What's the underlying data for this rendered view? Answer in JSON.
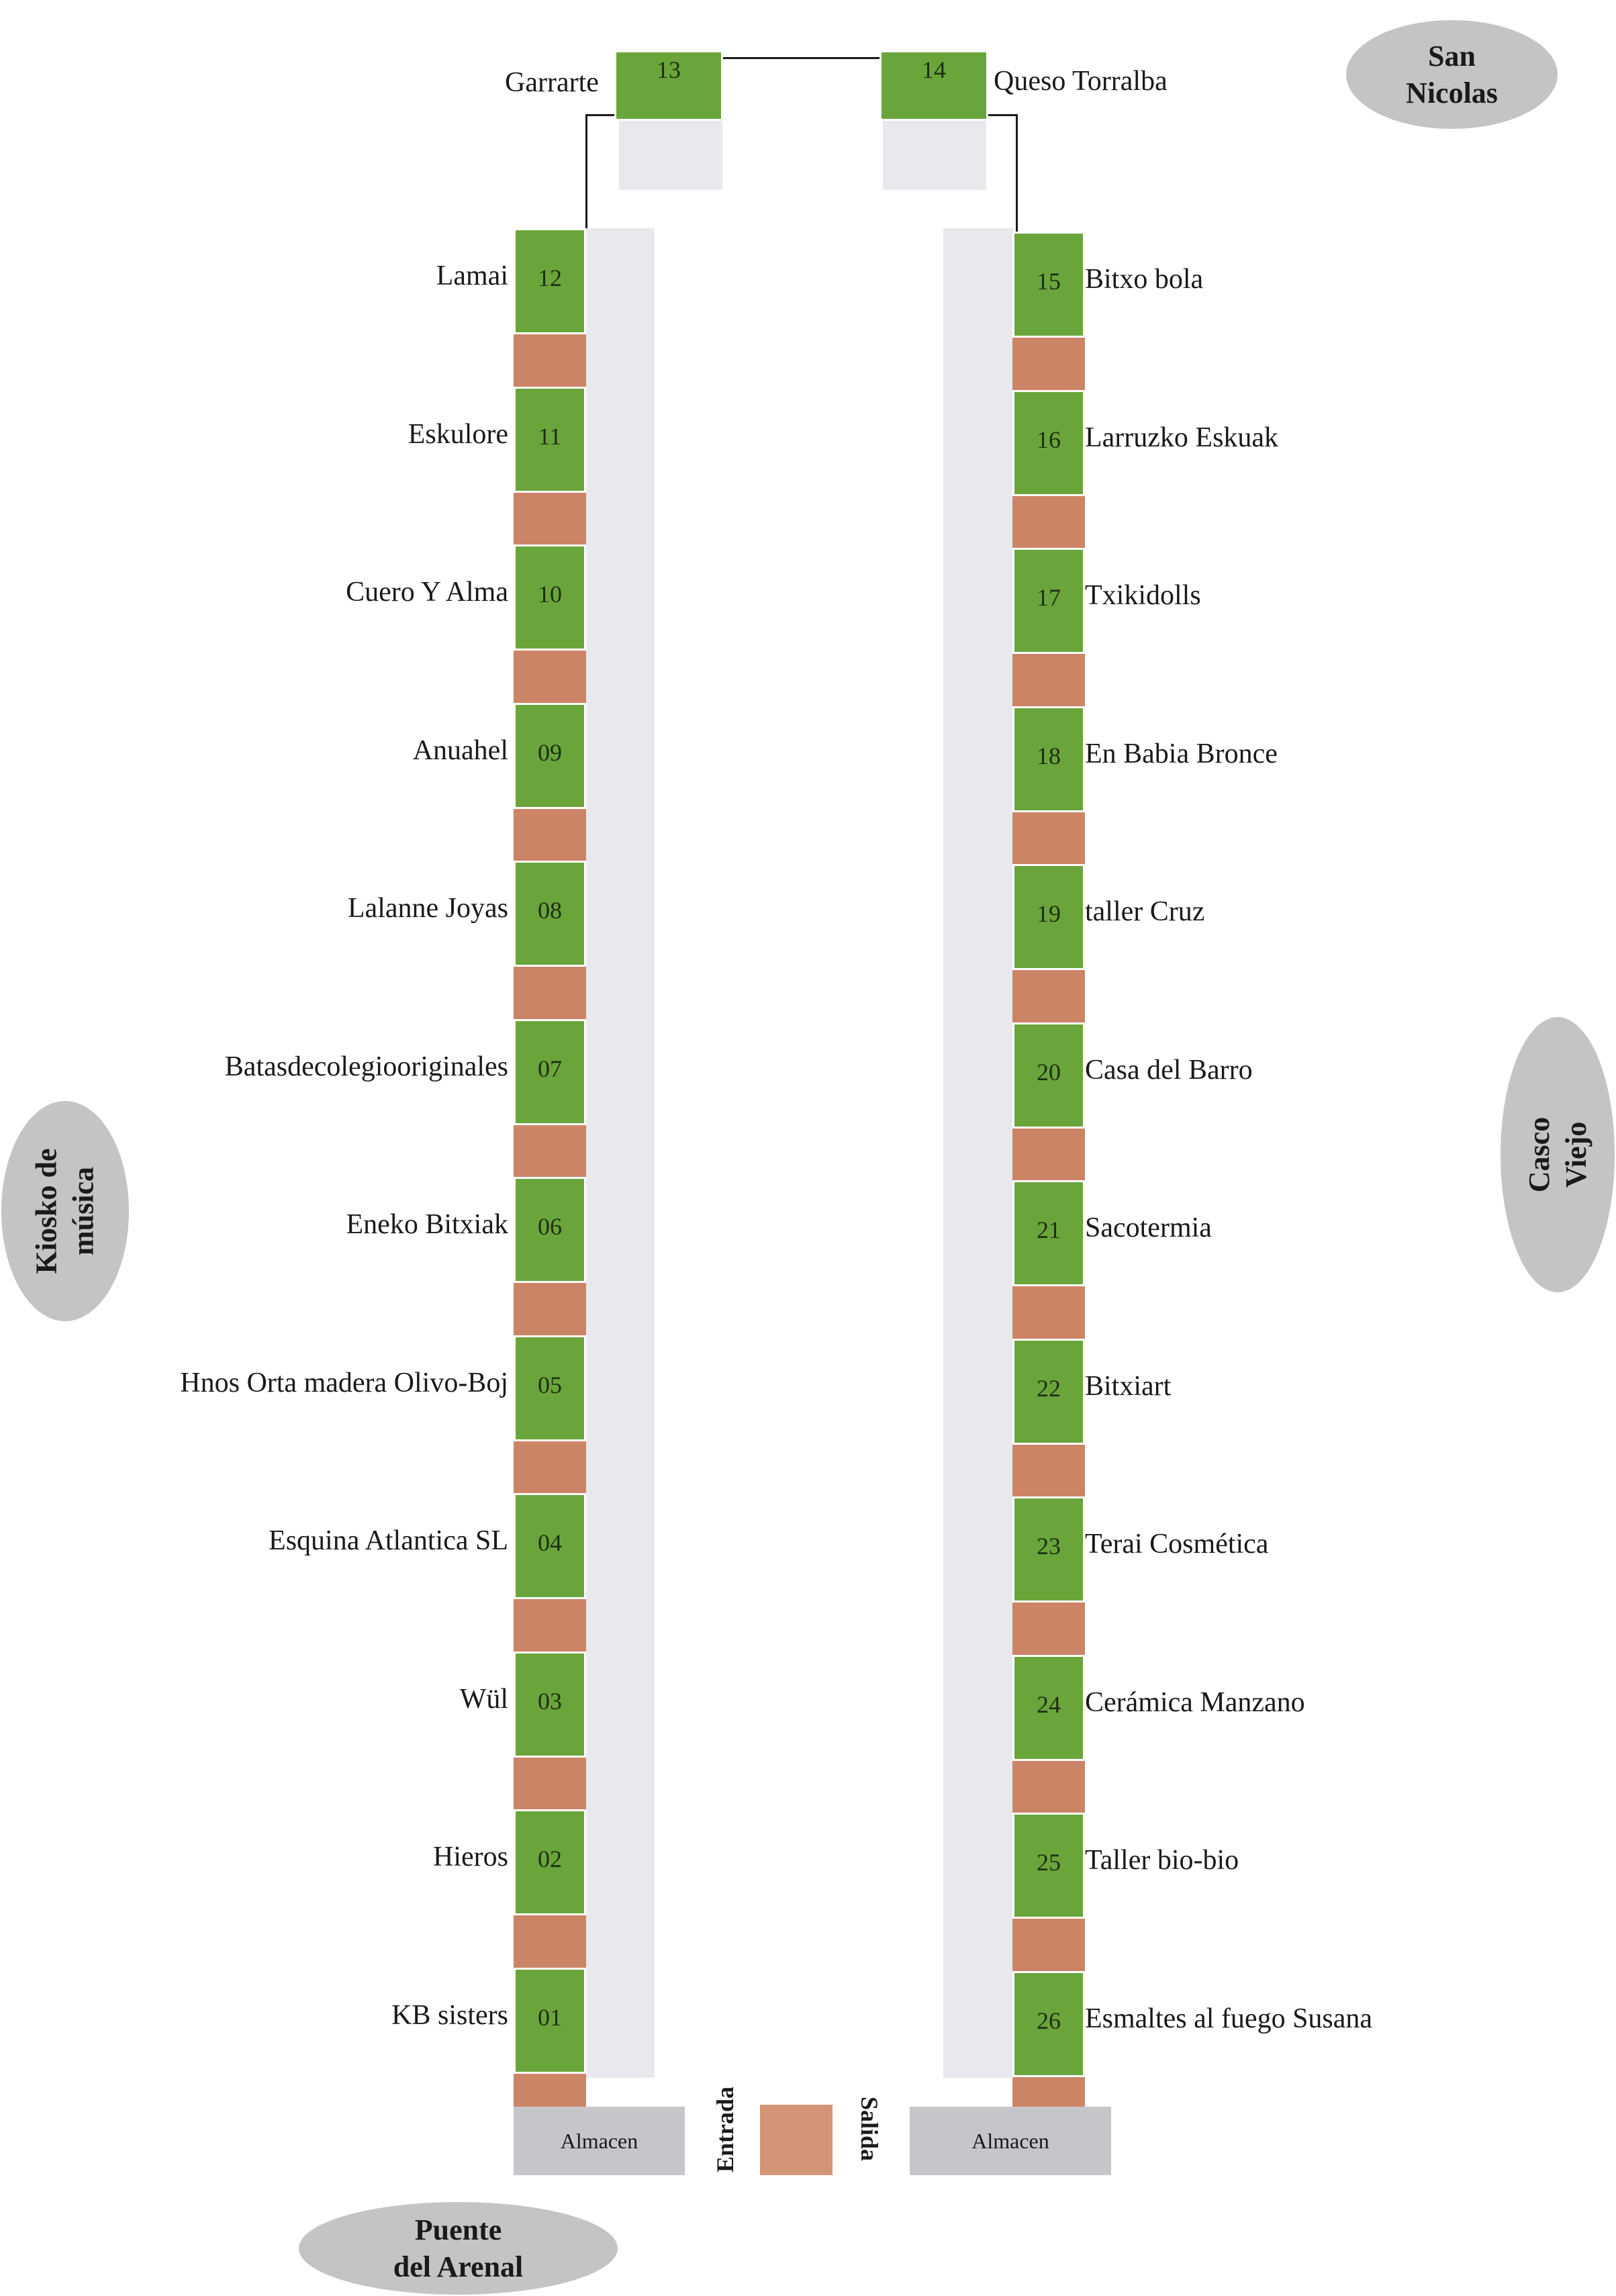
{
  "landmarks": {
    "san_nicolas": "San\nNicolas",
    "casco_viejo": "Casco\nViejo",
    "kiosko": "Kiosko de\nmúsica",
    "puente": "Puente\ndel Arenal"
  },
  "top_stands": [
    {
      "number": "13",
      "name": "Garrarte"
    },
    {
      "number": "14",
      "name": "Queso Torralba"
    }
  ],
  "left_stands": [
    {
      "number": "12",
      "name": "Lamai"
    },
    {
      "number": "11",
      "name": "Eskulore"
    },
    {
      "number": "10",
      "name": "Cuero Y Alma"
    },
    {
      "number": "09",
      "name": "Anuahel"
    },
    {
      "number": "08",
      "name": "Lalanne Joyas"
    },
    {
      "number": "07",
      "name": "Batasdecolegiooriginales"
    },
    {
      "number": "06",
      "name": "Eneko Bitxiak"
    },
    {
      "number": "05",
      "name": "Hnos Orta madera Olivo-Boj"
    },
    {
      "number": "04",
      "name": "Esquina Atlantica SL"
    },
    {
      "number": "03",
      "name": "Wül"
    },
    {
      "number": "02",
      "name": "Hieros"
    },
    {
      "number": "01",
      "name": "KB sisters"
    }
  ],
  "right_stands": [
    {
      "number": "15",
      "name": "Bitxo bola"
    },
    {
      "number": "16",
      "name": "Larruzko Eskuak"
    },
    {
      "number": "17",
      "name": "Txikidolls"
    },
    {
      "number": "18",
      "name": "En Babia Bronce"
    },
    {
      "number": "19",
      "name": "taller Cruz"
    },
    {
      "number": "20",
      "name": "Casa del Barro"
    },
    {
      "number": "21",
      "name": "Sacotermia"
    },
    {
      "number": "22",
      "name": "Bitxiart"
    },
    {
      "number": "23",
      "name": "Terai Cosmética"
    },
    {
      "number": "24",
      "name": "Cerámica Manzano"
    },
    {
      "number": "25",
      "name": "Taller bio-bio"
    },
    {
      "number": "26",
      "name": "Esmaltes al fuego Susana"
    }
  ],
  "storage": {
    "left": "Almacen",
    "right": "Almacen"
  },
  "legend": {
    "entrada": "Entrada",
    "salida": "Salida"
  },
  "colors": {
    "stand": "#6aa53b",
    "separator": "#cc8466",
    "aisle": "#e8e9ec",
    "landmark": "#c4c4c6",
    "storage": "#c6c6ca"
  }
}
